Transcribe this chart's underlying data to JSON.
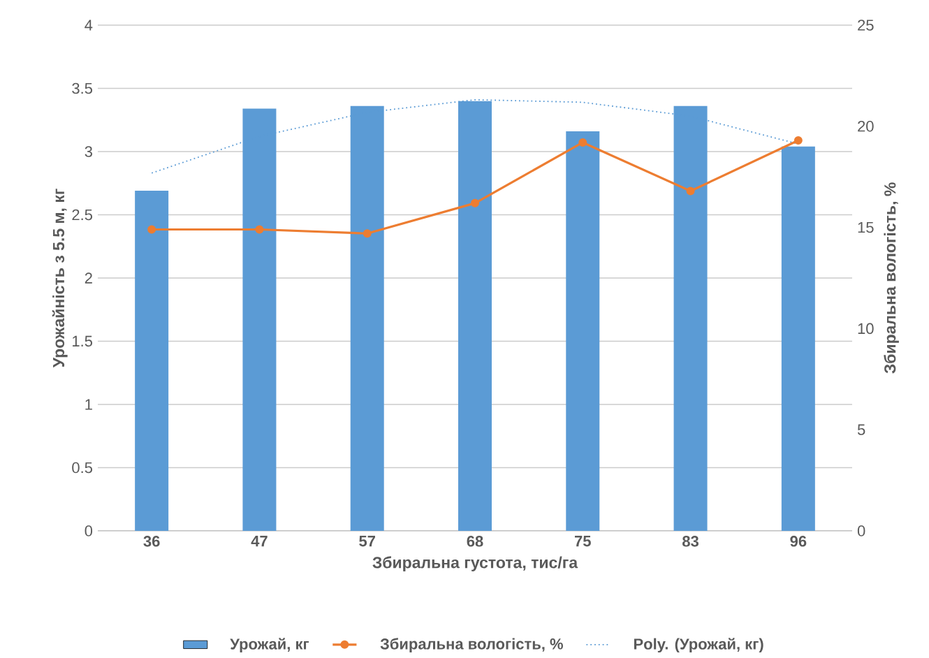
{
  "chart_data": {
    "type": "bar",
    "xlabel": "Збиральна густота, тис/га",
    "ylabel": "Урожайність з 5.5 м, кг",
    "y2label": "Збиральна вологість, %",
    "categories": [
      "36",
      "47",
      "57",
      "68",
      "75",
      "83",
      "96"
    ],
    "series": [
      {
        "name": "Урожай, кг",
        "color": "#5b9bd5",
        "values": [
          2.69,
          3.34,
          3.36,
          3.4,
          3.16,
          3.36,
          3.04
        ]
      },
      {
        "name": "Збиральна вологість, %",
        "type": "line",
        "axis": "y2",
        "color": "#ed7d31",
        "marker": "circle",
        "values": [
          14.9,
          14.9,
          14.7,
          16.2,
          19.2,
          16.8,
          19.3
        ]
      },
      {
        "name": "Poly. (Урожай, кг)",
        "type": "line",
        "color": "#5b9bd5",
        "marker": "none",
        "line_style": "dotted",
        "values": [
          2.83,
          3.12,
          3.31,
          3.41,
          3.39,
          3.28,
          3.06
        ]
      }
    ],
    "ylim": [
      0,
      4
    ],
    "yticks": [
      0,
      0.5,
      1,
      1.5,
      2,
      2.5,
      3,
      3.5,
      4
    ],
    "y2lim": [
      0,
      25
    ],
    "y2ticks": [
      0,
      5,
      10,
      15,
      20,
      25
    ],
    "grid": "y",
    "legend": "bottom"
  }
}
